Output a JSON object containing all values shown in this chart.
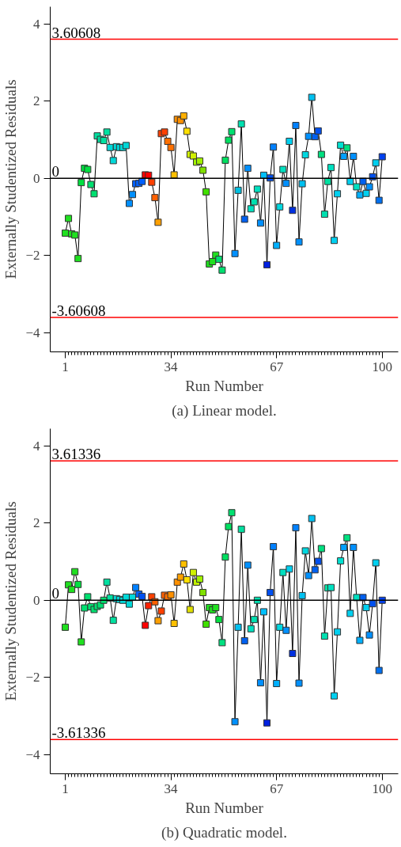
{
  "chart_data": [
    {
      "type": "line",
      "xlabel": "Run Number",
      "ylabel": "Externally Studentized Residuals",
      "annotations": [
        "(a) Linear model."
      ],
      "marker": "square",
      "line_style": "solid",
      "grid": false,
      "x": [
        1,
        2,
        3,
        4,
        5,
        6,
        7,
        8,
        9,
        10,
        11,
        12,
        13,
        14,
        15,
        16,
        17,
        18,
        19,
        20,
        21,
        22,
        23,
        24,
        25,
        26,
        27,
        28,
        29,
        30,
        31,
        32,
        33,
        34,
        35,
        36,
        37,
        38,
        39,
        40,
        41,
        42,
        43,
        44,
        45,
        46,
        47,
        48,
        49,
        50,
        51,
        52,
        53,
        54,
        55,
        56,
        57,
        58,
        59,
        60,
        61,
        62,
        63,
        64,
        65,
        66,
        67,
        68,
        69,
        70,
        71,
        72,
        73,
        74,
        75,
        76,
        77,
        78,
        79,
        80,
        81,
        82,
        83,
        84,
        85,
        86,
        87,
        88,
        89,
        90,
        91,
        92,
        93,
        94,
        95,
        96,
        97,
        98,
        99,
        100
      ],
      "xlim": [
        -3.7,
        105
      ],
      "xticks": [
        1,
        34,
        67,
        100
      ],
      "ylim": [
        -4.5,
        4.45
      ],
      "yticks": [
        -4,
        -2,
        0,
        2,
        4
      ],
      "ref_lines": [
        {
          "axis": "y",
          "value": 3.60608,
          "label": "3.60608",
          "color": "#ff0000"
        },
        {
          "axis": "y",
          "value": 0,
          "label": "0",
          "color": "#000000"
        },
        {
          "axis": "y",
          "value": -3.60608,
          "label": "-3.60608",
          "color": "#ff0000"
        }
      ],
      "series": [
        {
          "color": "#000000",
          "values": [
            -1.42,
            -1.04,
            -1.44,
            -1.47,
            -2.08,
            -0.11,
            0.26,
            0.23,
            -0.16,
            -0.4,
            1.1,
            1.01,
            0.98,
            1.2,
            0.8,
            0.46,
            0.82,
            0.8,
            0.8,
            0.85,
            -0.65,
            -0.42,
            -0.14,
            -0.13,
            -0.08,
            0.09,
            0.08,
            -0.1,
            -0.5,
            -1.14,
            1.16,
            1.2,
            0.96,
            0.8,
            0.09,
            1.53,
            1.5,
            1.62,
            1.22,
            0.62,
            0.58,
            0.42,
            0.45,
            0.21,
            -0.35,
            -2.22,
            -2.16,
            -1.99,
            -2.1,
            -2.38,
            0.47,
            0.99,
            1.21,
            -1.95,
            -0.31,
            1.41,
            -1.06,
            0.26,
            -0.79,
            -0.61,
            -0.28,
            -1.16,
            0.08,
            -2.24,
            0.01,
            0.81,
            -1.74,
            -0.74,
            0.23,
            -0.13,
            0.96,
            -0.83,
            1.37,
            -1.65,
            -0.14,
            0.61,
            1.09,
            2.1,
            1.08,
            1.23,
            0.62,
            -0.93,
            -0.08,
            0.28,
            -1.61,
            -0.4,
            0.86,
            0.57,
            0.79,
            -0.08,
            0.57,
            -0.22,
            -0.43,
            -0.08,
            -0.39,
            -0.22,
            0.04,
            0.4,
            -0.57,
            0.56
          ],
          "colors": [
            "#20e020",
            "#20e020",
            "#20e020",
            "#20e020",
            "#20e020",
            "#00e040",
            "#00e040",
            "#00e040",
            "#00e070",
            "#00e070",
            "#00e0a0",
            "#00e0a0",
            "#00e0a0",
            "#00e0a0",
            "#00d8d8",
            "#00d8d8",
            "#00d8d8",
            "#00d8d8",
            "#00d8d8",
            "#00d8d8",
            "#0090ff",
            "#0090ff",
            "#0060ff",
            "#0060ff",
            "#0060ff",
            "#ff0000",
            "#ff0000",
            "#ff4000",
            "#ff6000",
            "#ffa000",
            "#ff4000",
            "#ff4000",
            "#ff7000",
            "#ff7000",
            "#ffc000",
            "#ff9000",
            "#ff9000",
            "#ffb000",
            "#ffe000",
            "#d0f000",
            "#d0f000",
            "#a0f000",
            "#a0f000",
            "#80e000",
            "#40e000",
            "#20e020",
            "#20e020",
            "#20e020",
            "#00e070",
            "#00e070",
            "#00e060",
            "#00e060",
            "#00e070",
            "#0090ff",
            "#00c0e0",
            "#00e0b0",
            "#0060f0",
            "#0090ff",
            "#00e0c0",
            "#00e0b0",
            "#00e0c0",
            "#0090ff",
            "#00c0ff",
            "#0020e0",
            "#0050f0",
            "#0080ff",
            "#00b0ff",
            "#00d8e0",
            "#00e0c0",
            "#0090ff",
            "#00d0f0",
            "#0030e0",
            "#0080ff",
            "#0090ff",
            "#00c0f0",
            "#00d8e0",
            "#0090ff",
            "#00c0f0",
            "#0060f0",
            "#0050f0",
            "#00e080",
            "#00e0b0",
            "#00e0a0",
            "#00e0c0",
            "#00d0f0",
            "#00d0f0",
            "#00e0d0",
            "#00a0ff",
            "#00e080",
            "#00d0f0",
            "#0090ff",
            "#00e0c0",
            "#00b0ff",
            "#0060f0",
            "#00d0f0",
            "#0090ff",
            "#0050f0",
            "#00d0f0",
            "#0070f0",
            "#0040f0"
          ]
        }
      ]
    },
    {
      "type": "line",
      "xlabel": "Run Number",
      "ylabel": "Externally Studentized Residuals",
      "annotations": [
        "(b) Quadratic model."
      ],
      "marker": "square",
      "line_style": "solid",
      "grid": false,
      "x": [
        1,
        2,
        3,
        4,
        5,
        6,
        7,
        8,
        9,
        10,
        11,
        12,
        13,
        14,
        15,
        16,
        17,
        18,
        19,
        20,
        21,
        22,
        23,
        24,
        25,
        26,
        27,
        28,
        29,
        30,
        31,
        32,
        33,
        34,
        35,
        36,
        37,
        38,
        39,
        40,
        41,
        42,
        43,
        44,
        45,
        46,
        47,
        48,
        49,
        50,
        51,
        52,
        53,
        54,
        55,
        56,
        57,
        58,
        59,
        60,
        61,
        62,
        63,
        64,
        65,
        66,
        67,
        68,
        69,
        70,
        71,
        72,
        73,
        74,
        75,
        76,
        77,
        78,
        79,
        80,
        81,
        82,
        83,
        84,
        85,
        86,
        87,
        88,
        89,
        90,
        91,
        92,
        93,
        94,
        95,
        96,
        97,
        98,
        99,
        100
      ],
      "xlim": [
        -3.7,
        105
      ],
      "xticks": [
        1,
        34,
        67,
        100
      ],
      "ylim": [
        -4.5,
        4.45
      ],
      "yticks": [
        -4,
        -2,
        0,
        2,
        4
      ],
      "ref_lines": [
        {
          "axis": "y",
          "value": 3.61336,
          "label": "3.61336",
          "color": "#ff0000"
        },
        {
          "axis": "y",
          "value": 0,
          "label": "0",
          "color": "#000000"
        },
        {
          "axis": "y",
          "value": -3.61336,
          "label": "-3.61336",
          "color": "#ff0000"
        }
      ],
      "series": [
        {
          "color": "#000000",
          "values": [
            -0.7,
            0.4,
            0.28,
            0.74,
            0.41,
            -1.08,
            -0.2,
            0.09,
            -0.17,
            -0.24,
            -0.16,
            -0.12,
            0.0,
            0.47,
            0.06,
            -0.52,
            0.04,
            0.02,
            0.0,
            0.08,
            -0.1,
            0.08,
            0.33,
            0.16,
            0.1,
            -0.65,
            -0.14,
            0.09,
            -0.04,
            -0.53,
            -0.28,
            0.13,
            0.09,
            0.14,
            -0.6,
            0.47,
            0.6,
            0.94,
            0.53,
            -0.24,
            0.72,
            0.47,
            0.55,
            0.2,
            -0.62,
            -0.19,
            -0.25,
            -0.19,
            -0.5,
            -1.1,
            1.12,
            1.91,
            2.27,
            -3.15,
            -0.7,
            1.84,
            -1.05,
            0.91,
            -0.74,
            -0.5,
            0.0,
            -2.14,
            -0.3,
            -3.18,
            0.2,
            1.39,
            -2.16,
            -0.7,
            0.72,
            -0.78,
            0.81,
            -1.38,
            1.88,
            -2.15,
            0.12,
            1.28,
            0.64,
            2.12,
            0.79,
            1.01,
            1.34,
            -0.93,
            0.32,
            0.33,
            -2.48,
            -0.82,
            1.02,
            1.37,
            1.62,
            -0.34,
            1.37,
            0.07,
            -1.04,
            0.07,
            -0.19,
            -0.9,
            -0.09,
            0.97,
            -1.82,
            0.0
          ],
          "colors": [
            "#20e020",
            "#20e020",
            "#20e020",
            "#20e020",
            "#00e040",
            "#20e020",
            "#00e070",
            "#00e070",
            "#00e070",
            "#00e070",
            "#00e070",
            "#00e070",
            "#00e070",
            "#00e0a0",
            "#00e0a0",
            "#00e0a0",
            "#00d8d8",
            "#00d8d8",
            "#00d8d8",
            "#00d8d8",
            "#00d8d8",
            "#00d8d8",
            "#0080ff",
            "#0060ff",
            "#0050f0",
            "#ff0000",
            "#ff2000",
            "#ff4000",
            "#ff6000",
            "#ffa000",
            "#ff4000",
            "#ff6000",
            "#ff7000",
            "#ff9000",
            "#ffc000",
            "#ff9000",
            "#ffa000",
            "#ffc000",
            "#ffe000",
            "#e0e000",
            "#d0f000",
            "#c0f000",
            "#a0f000",
            "#80e000",
            "#40e000",
            "#20e020",
            "#20e020",
            "#20e020",
            "#00e040",
            "#00e080",
            "#00e060",
            "#00e060",
            "#00e070",
            "#0090ff",
            "#00c0f0",
            "#00e0a0",
            "#0060f0",
            "#0090ff",
            "#00e0c0",
            "#00e0b0",
            "#00e0b0",
            "#0090ff",
            "#00c0ff",
            "#0020e0",
            "#0050f0",
            "#0080ff",
            "#00b0ff",
            "#00d8e0",
            "#00e0c0",
            "#0090ff",
            "#00d0f0",
            "#0030e0",
            "#0080ff",
            "#0090ff",
            "#00c0f0",
            "#00d8e0",
            "#0090ff",
            "#00c0f0",
            "#0060f0",
            "#0050f0",
            "#00e080",
            "#00e0b0",
            "#00e0a0",
            "#00e0c0",
            "#00d0f0",
            "#00d0f0",
            "#00e0d0",
            "#00a0ff",
            "#00e080",
            "#00d0f0",
            "#0090ff",
            "#00e0c0",
            "#00b0ff",
            "#0060f0",
            "#00d0f0",
            "#0090ff",
            "#0050f0",
            "#00d0f0",
            "#0070f0",
            "#0040f0"
          ]
        }
      ]
    }
  ]
}
